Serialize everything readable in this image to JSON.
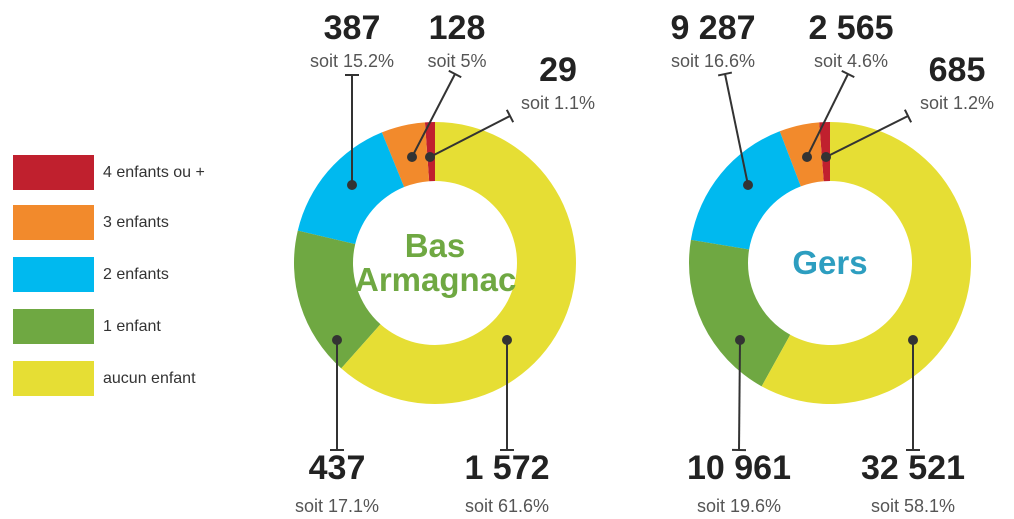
{
  "chart_data": [
    {
      "type": "donut",
      "title": "Bas Armagnac",
      "title_color": "#6fa842",
      "categories": [
        "4 enfants ou +",
        "3 enfants",
        "2 enfants",
        "1 enfant",
        "aucun enfant"
      ],
      "values": [
        29,
        128,
        387,
        437,
        1572
      ],
      "value_labels": [
        "29",
        "128",
        "387",
        "437",
        "1 572"
      ],
      "share_labels": [
        "soit 1.1%",
        "soit 5%",
        "soit 15.2%",
        "soit 17.1%",
        "soit 61.6%"
      ],
      "colors": [
        "#c0202e",
        "#f28a2c",
        "#00b9ef",
        "#6fa842",
        "#e6de34"
      ]
    },
    {
      "type": "donut",
      "title": "Gers",
      "title_color": "#2d9ec0",
      "categories": [
        "4 enfants ou +",
        "3 enfants",
        "2 enfants",
        "1 enfant",
        "aucun enfant"
      ],
      "values": [
        685,
        2565,
        9287,
        10961,
        32521
      ],
      "value_labels": [
        "685",
        "2 565",
        "9 287",
        "10 961",
        "32 521"
      ],
      "share_labels": [
        "soit 1.2%",
        "soit 4.6%",
        "soit 16.6%",
        "soit 19.6%",
        "soit 58.1%"
      ],
      "colors": [
        "#c0202e",
        "#f28a2c",
        "#00b9ef",
        "#6fa842",
        "#e6de34"
      ]
    }
  ]
}
